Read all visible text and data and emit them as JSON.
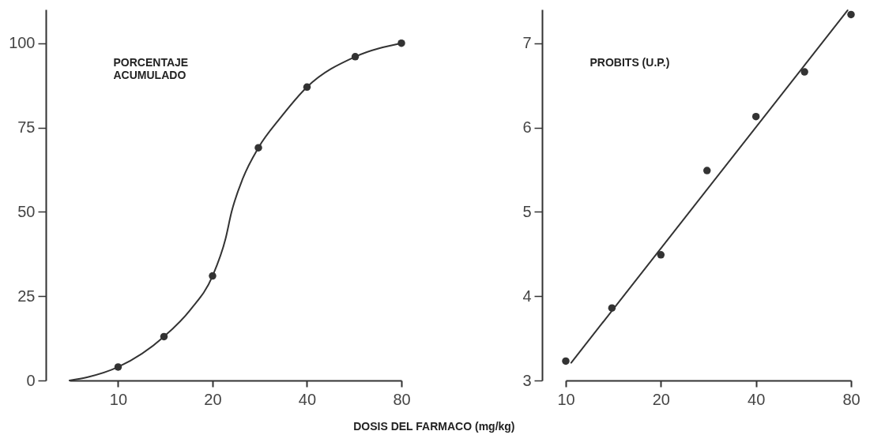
{
  "chart_data": [
    {
      "type": "scatter",
      "ylabel": "PORCENTAJE\nACUMULADO",
      "xlabel": "DOSIS DEL FARMACO    (mg/kg)",
      "log": "x",
      "xlim": [
        7,
        80
      ],
      "xticks": [
        10,
        20,
        40,
        80
      ],
      "ylim": [
        0,
        110
      ],
      "yticks": [
        0,
        25,
        50,
        75,
        100
      ],
      "series": [
        {
          "type": "scatter",
          "marker": "circle",
          "color": "#333333",
          "x": [
            10,
            14,
            20,
            28,
            40,
            57,
            80
          ],
          "values": [
            4,
            13,
            31,
            69,
            87,
            96,
            100
          ]
        },
        {
          "type": "line",
          "marker": "none",
          "line_style": "solid",
          "color": "#333333",
          "x": [
            7,
            8,
            10,
            14,
            17,
            20,
            22,
            23,
            25,
            28,
            33,
            40,
            57,
            80
          ],
          "values": [
            0,
            1,
            4,
            13,
            21,
            31,
            42,
            50,
            60,
            69,
            78,
            87,
            96,
            100
          ]
        }
      ]
    },
    {
      "type": "scatter",
      "ylabel": "PROBITS (U.P.)",
      "log": "x",
      "xlim": [
        10,
        80
      ],
      "xticks": [
        10,
        20,
        40,
        80
      ],
      "ylim": [
        3,
        7.4
      ],
      "yticks": [
        3,
        4,
        5,
        6,
        7
      ],
      "series": [
        {
          "type": "scatter",
          "marker": "circle",
          "color": "#333333",
          "x": [
            10,
            14,
            20,
            28,
            40,
            57,
            80
          ],
          "values": [
            3.23,
            3.86,
            4.49,
            5.49,
            6.13,
            6.66,
            7.34
          ]
        },
        {
          "type": "line",
          "marker": "none",
          "line_style": "solid",
          "color": "#333333",
          "x": [
            10.4,
            78
          ],
          "values": [
            3.21,
            7.39
          ]
        }
      ]
    }
  ]
}
